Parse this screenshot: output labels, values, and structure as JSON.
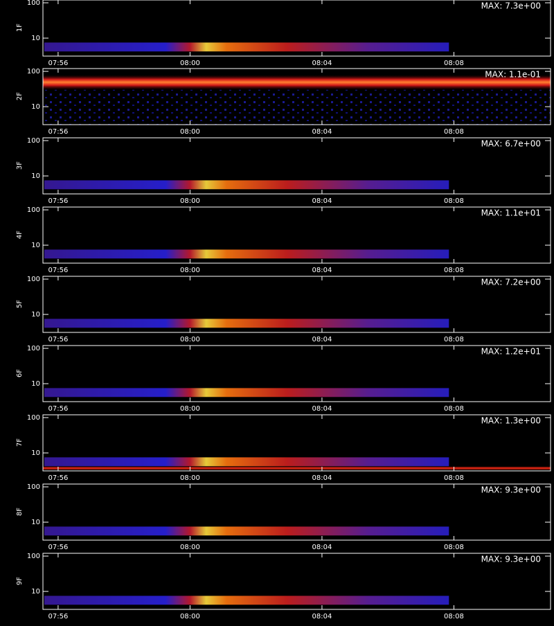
{
  "chart_data": {
    "type": "spectrogram",
    "xlim": [
      475.54,
      490.93
    ],
    "xticks": [
      {
        "value": 476,
        "label": "07:56"
      },
      {
        "value": 480,
        "label": "08:00"
      },
      {
        "value": 484,
        "label": "08:04"
      },
      {
        "value": 488,
        "label": "08:08"
      }
    ],
    "ylim": [
      3.1,
      120
    ],
    "yscale": "log",
    "yticks": [
      10,
      100
    ],
    "panels": [
      {
        "ylabel": "1F",
        "annotation": "MAX: 7.3e+00"
      },
      {
        "ylabel": "2F",
        "annotation": "MAX: 1.1e-01"
      },
      {
        "ylabel": "3F",
        "annotation": "MAX: 6.7e+00"
      },
      {
        "ylabel": "4F",
        "annotation": "MAX: 1.1e+01"
      },
      {
        "ylabel": "5F",
        "annotation": "MAX: 7.2e+00"
      },
      {
        "ylabel": "6F",
        "annotation": "MAX: 1.2e+01"
      },
      {
        "ylabel": "7F",
        "annotation": "MAX: 1.3e+00"
      },
      {
        "ylabel": "8F",
        "annotation": "MAX: 9.3e+00"
      },
      {
        "ylabel": "9F",
        "annotation": "MAX: 9.3e+00"
      }
    ]
  }
}
